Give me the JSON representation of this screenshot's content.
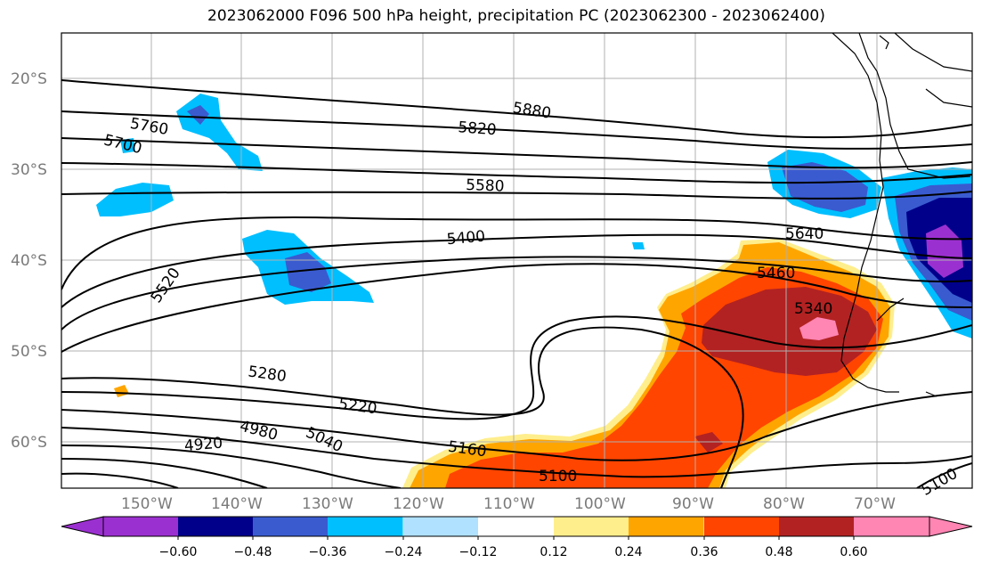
{
  "title": "2023062000 F096 500 hPa height, precipitation PC (2023062300 - 2023062400)",
  "map": {
    "lat_labels": [
      "20°S",
      "30°S",
      "40°S",
      "50°S",
      "60°S"
    ],
    "lon_labels": [
      "150°W",
      "140°W",
      "130°W",
      "120°W",
      "110°W",
      "100°W",
      "90°W",
      "80°W",
      "70°W"
    ],
    "contour_labels": [
      "5880",
      "5820",
      "5760",
      "5700",
      "5580",
      "5520",
      "5400",
      "5640",
      "5460",
      "5340",
      "5280",
      "5220",
      "5160",
      "5100",
      "5040",
      "4980",
      "4920",
      "5100"
    ],
    "grid_color": "#b0b0b0",
    "contour_color": "#000000"
  },
  "colorbar": {
    "ticks": [
      "−0.60",
      "−0.48",
      "−0.36",
      "−0.24",
      "−0.12",
      "0.12",
      "0.24",
      "0.36",
      "0.48",
      "0.60"
    ],
    "colors": [
      "#9b30d0",
      "#00008b",
      "#3a5bd0",
      "#00bfff",
      "#b0e2ff",
      "#ffffff",
      "#ffee8c",
      "#ffa500",
      "#ff4500",
      "#b22222",
      "#ff85b3"
    ]
  }
}
